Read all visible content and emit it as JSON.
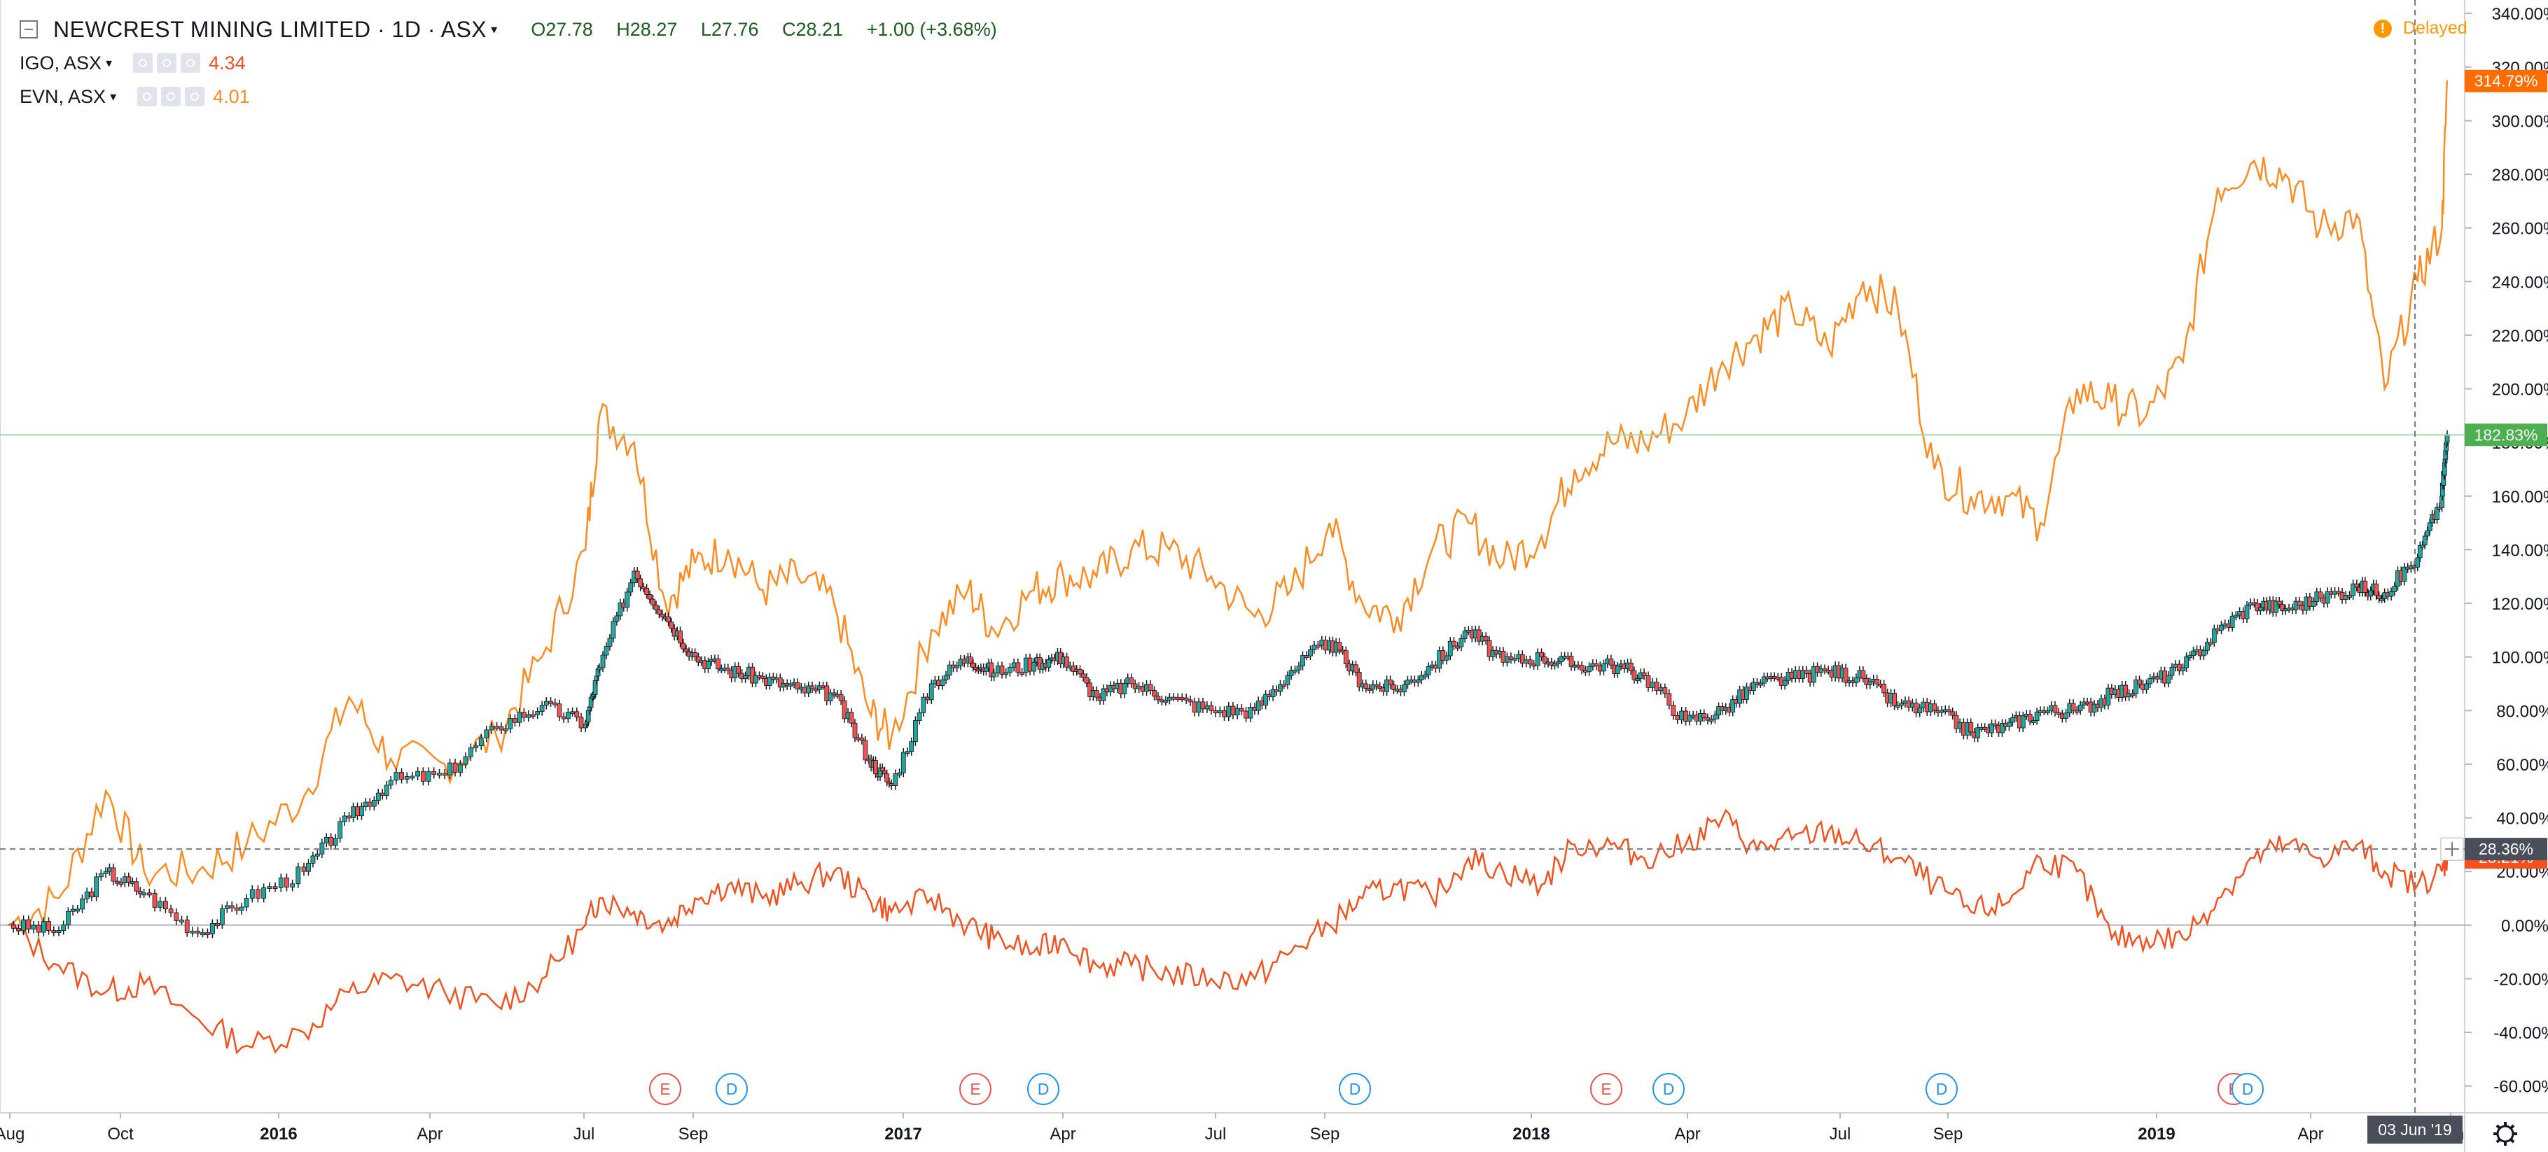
{
  "header": {
    "title": "NEWCREST MINING LIMITED · 1D · ASX",
    "ohlc": {
      "open": "O27.78",
      "high": "H28.27",
      "low": "L27.76",
      "close": "C28.21",
      "change": "+1.00 (+3.68%)"
    },
    "compare": [
      {
        "symbol": "IGO, ASX",
        "value": "4.34"
      },
      {
        "symbol": "EVN, ASX",
        "value": "4.01"
      }
    ],
    "delayed": "Delayed"
  },
  "crosshair": {
    "value_label": "28.36%",
    "date_label": "03 Jun '19"
  },
  "colors": {
    "up": "#26a69a",
    "down": "#ef5350",
    "evn": "#ff8a1f",
    "igo": "#f4511e",
    "last_green": "#4caf50"
  },
  "chart_data": {
    "type": "line",
    "yunit": "%",
    "ylim": [
      -70,
      345
    ],
    "yticks": [
      "340.00%",
      "320.00%",
      "300.00%",
      "280.00%",
      "260.00%",
      "240.00%",
      "220.00%",
      "200.00%",
      "180.00%",
      "160.00%",
      "140.00%",
      "120.00%",
      "100.00%",
      "80.00%",
      "60.00%",
      "40.00%",
      "20.00%",
      "0.00%",
      "-20.00%",
      "-40.00%",
      "-60.00%"
    ],
    "xticks": [
      "Aug",
      "Oct",
      "2016",
      "Apr",
      "Jul",
      "Sep",
      "2017",
      "Apr",
      "Jul",
      "Sep",
      "2018",
      "Apr",
      "Jul",
      "Sep",
      "2019",
      "Apr",
      "Jun"
    ],
    "last_values": {
      "evn": "314.79%",
      "ncm": "182.83%",
      "igo": "25.21%"
    },
    "events": [
      "E",
      "D",
      "E",
      "D",
      "D",
      "E",
      "D",
      "D",
      "E"
    ],
    "x": [
      "2015-08-03",
      "2015-09-01",
      "2015-09-28",
      "2015-10-20",
      "2015-11-20",
      "2015-12-18",
      "2016-01-20",
      "2016-02-15",
      "2016-03-10",
      "2016-04-10",
      "2016-05-10",
      "2016-06-05",
      "2016-06-30",
      "2016-07-08",
      "2016-07-28",
      "2016-08-15",
      "2016-09-01",
      "2016-09-20",
      "2016-10-10",
      "2016-10-30",
      "2016-11-20",
      "2016-12-10",
      "2016-12-23",
      "2017-01-15",
      "2017-02-05",
      "2017-02-20",
      "2017-03-15",
      "2017-04-01",
      "2017-04-20",
      "2017-05-10",
      "2017-06-01",
      "2017-06-25",
      "2017-07-20",
      "2017-08-10",
      "2017-09-01",
      "2017-09-20",
      "2017-10-10",
      "2017-10-30",
      "2017-11-20",
      "2017-12-10",
      "2018-01-01",
      "2018-01-20",
      "2018-02-10",
      "2018-03-01",
      "2018-03-25",
      "2018-04-15",
      "2018-05-05",
      "2018-05-25",
      "2018-06-15",
      "2018-07-05",
      "2018-07-25",
      "2018-08-15",
      "2018-09-05",
      "2018-09-25",
      "2018-10-15",
      "2018-11-05",
      "2018-11-25",
      "2018-12-15",
      "2019-01-05",
      "2019-01-25",
      "2019-02-15",
      "2019-03-05",
      "2019-03-25",
      "2019-04-15",
      "2019-05-01",
      "2019-05-20",
      "2019-06-03",
      "2019-06-06"
    ],
    "series": [
      {
        "name": "NEWCREST MINING LIMITED",
        "values": [
          0,
          -2,
          20,
          12,
          -3,
          10,
          20,
          40,
          54,
          56,
          74,
          82,
          75,
          96,
          132,
          115,
          100,
          95,
          92,
          88,
          86,
          62,
          52,
          90,
          100,
          94,
          98,
          100,
          85,
          90,
          85,
          80,
          80,
          95,
          106,
          90,
          88,
          97,
          110,
          98,
          100,
          97,
          97,
          93,
          76,
          80,
          90,
          92,
          95,
          92,
          82,
          80,
          72,
          74,
          80,
          80,
          86,
          90,
          96,
          110,
          120,
          118,
          122,
          126,
          124,
          137,
          160,
          183
        ]
      },
      {
        "name": "EVN, ASX",
        "values": [
          0,
          10,
          50,
          20,
          20,
          30,
          48,
          85,
          62,
          60,
          70,
          100,
          140,
          190,
          180,
          120,
          135,
          140,
          125,
          130,
          120,
          80,
          70,
          110,
          125,
          110,
          125,
          130,
          130,
          140,
          140,
          130,
          115,
          125,
          150,
          120,
          115,
          140,
          150,
          135,
          145,
          170,
          180,
          180,
          190,
          210,
          220,
          230,
          215,
          240,
          230,
          170,
          160,
          160,
          150,
          200,
          195,
          190,
          210,
          275,
          285,
          280,
          260,
          265,
          200,
          240,
          260,
          315
        ]
      },
      {
        "name": "IGO, ASX",
        "values": [
          0,
          -15,
          -25,
          -22,
          -35,
          -45,
          -40,
          -25,
          -20,
          -25,
          -30,
          -20,
          0,
          10,
          5,
          0,
          10,
          15,
          10,
          15,
          20,
          10,
          5,
          10,
          0,
          -5,
          -10,
          -5,
          -15,
          -15,
          -18,
          -20,
          -20,
          -10,
          0,
          10,
          15,
          10,
          25,
          20,
          15,
          30,
          30,
          25,
          30,
          40,
          28,
          32,
          35,
          30,
          25,
          15,
          5,
          8,
          25,
          20,
          -5,
          -5,
          -5,
          10,
          25,
          30,
          25,
          30,
          20,
          15,
          20,
          25
        ]
      }
    ]
  }
}
